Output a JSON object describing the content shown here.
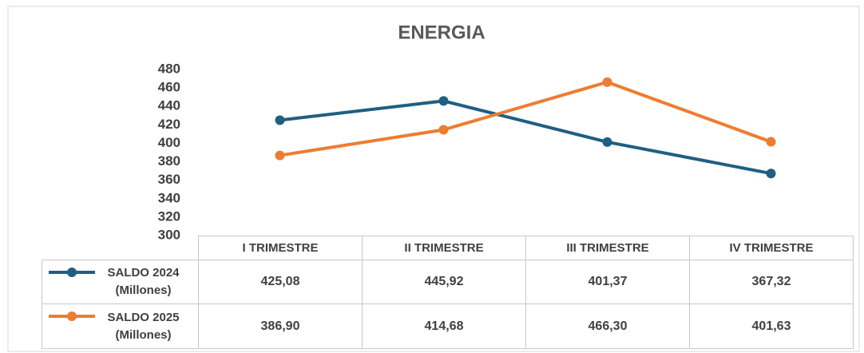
{
  "chart_data": {
    "type": "line",
    "title": "ENERGIA",
    "categories": [
      "I TRIMESTRE",
      "II TRIMESTRE",
      "III TRIMESTRE",
      "IV TRIMESTRE"
    ],
    "series": [
      {
        "name": "SALDO 2024 (Millones)",
        "color": "#1f5f82",
        "values": [
          425.08,
          445.92,
          401.37,
          367.32
        ],
        "value_labels": [
          "425,08",
          "445,92",
          "401,37",
          "367,32"
        ]
      },
      {
        "name": "SALDO 2025 (Millones)",
        "color": "#ed7d31",
        "values": [
          386.9,
          414.68,
          466.3,
          401.63
        ],
        "value_labels": [
          "386,90",
          "414,68",
          "466,30",
          "401,63"
        ]
      }
    ],
    "ylim": [
      300,
      480
    ],
    "yticks": [
      300,
      320,
      340,
      360,
      380,
      400,
      420,
      440,
      460,
      480
    ],
    "grid": false
  }
}
